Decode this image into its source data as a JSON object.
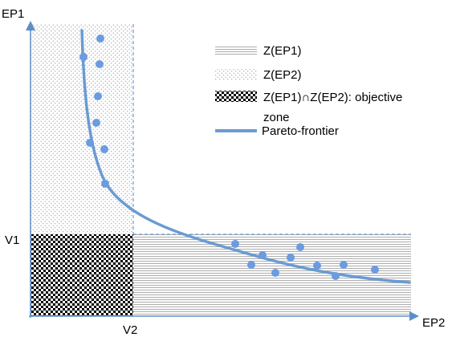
{
  "axes": {
    "y_label": "EP1",
    "x_label": "EP2",
    "y_threshold_label": "V1",
    "x_threshold_label": "V2"
  },
  "legend": {
    "items": [
      {
        "key": "zone-ep1",
        "label": "Z(EP1)",
        "pattern": "horizontal-lines"
      },
      {
        "key": "zone-ep2",
        "label": "Z(EP2)",
        "pattern": "dots"
      },
      {
        "key": "objective",
        "label_line1": "Z(EP1)∩Z(EP2): objective",
        "label_line2": "zone",
        "pattern": "checkerboard"
      },
      {
        "key": "frontier",
        "label": "Pareto-frontier",
        "pattern": "line"
      }
    ]
  },
  "colors": {
    "axis": "#5b8fc9",
    "frontier": "#6a9bd3",
    "points": "#6b9be0",
    "checker": "#000000",
    "hatch": "#8a8a8a",
    "dot": "#9a9a9a"
  }
}
